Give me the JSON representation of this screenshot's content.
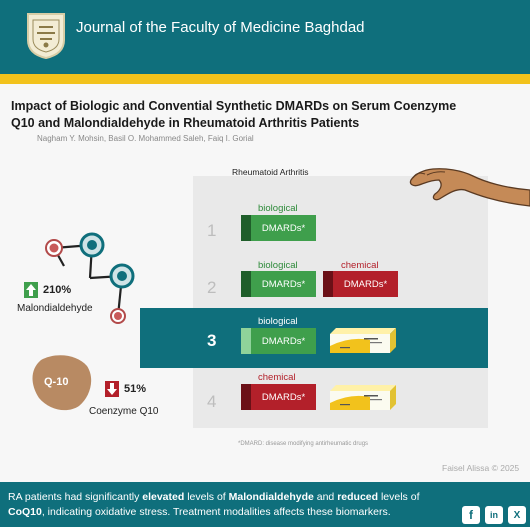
{
  "header": {
    "journal_title": "Journal of the Faculty of Medicine Baghdad",
    "logo_icon": "journal-seal-logo"
  },
  "article": {
    "title": "Impact of Biologic and Convential Synthetic DMARDs on Serum Coenzyme Q10 and Malondialdehyde in Rheumatoid Arthritis Patients",
    "authors": "Nagham Y. Mohsin, Basil O. Mohammed Saleh, Faiq I. Gorial"
  },
  "panel": {
    "label": "Rheumatoid Arthritis",
    "rows": [
      {
        "number": "1",
        "items": [
          {
            "label": "biological",
            "box": "DMARDs*"
          }
        ]
      },
      {
        "number": "2",
        "items": [
          {
            "label": "biological",
            "box": "DMARDs*"
          },
          {
            "label": "chemical",
            "box": "DMARDs*"
          }
        ]
      },
      {
        "number": "3",
        "items": [
          {
            "label": "biological",
            "box": "DMARDs*"
          }
        ],
        "highlighted": true
      },
      {
        "number": "4",
        "items": [
          {
            "label": "chemical",
            "box": "DMARDs*"
          }
        ]
      }
    ],
    "footnote": "*DMARD: disease modifying antirheumatic drugs"
  },
  "biomarkers": {
    "malondialdehyde": {
      "name": "Malondialdehyde",
      "change": "210%",
      "direction": "up"
    },
    "coq10": {
      "name": "Coenzyme Q10",
      "change": "51%",
      "direction": "down",
      "badge": "Q-10"
    }
  },
  "credit": "Faisel Alissa © 2025",
  "footer": {
    "summary_parts": [
      "RA patients had significantly ",
      "elevated",
      " levels of ",
      "Malondialdehyde",
      " and ",
      "reduced",
      " levels of ",
      "CoQ10",
      ", indicating oxidative stress. Treatment modalities affects these biomarkers."
    ],
    "social": [
      "f",
      "in",
      "X"
    ]
  },
  "colors": {
    "teal": "#0f6f7c",
    "yellow": "#f2c21c",
    "green": "#3f9f4c",
    "red": "#b3202a"
  }
}
